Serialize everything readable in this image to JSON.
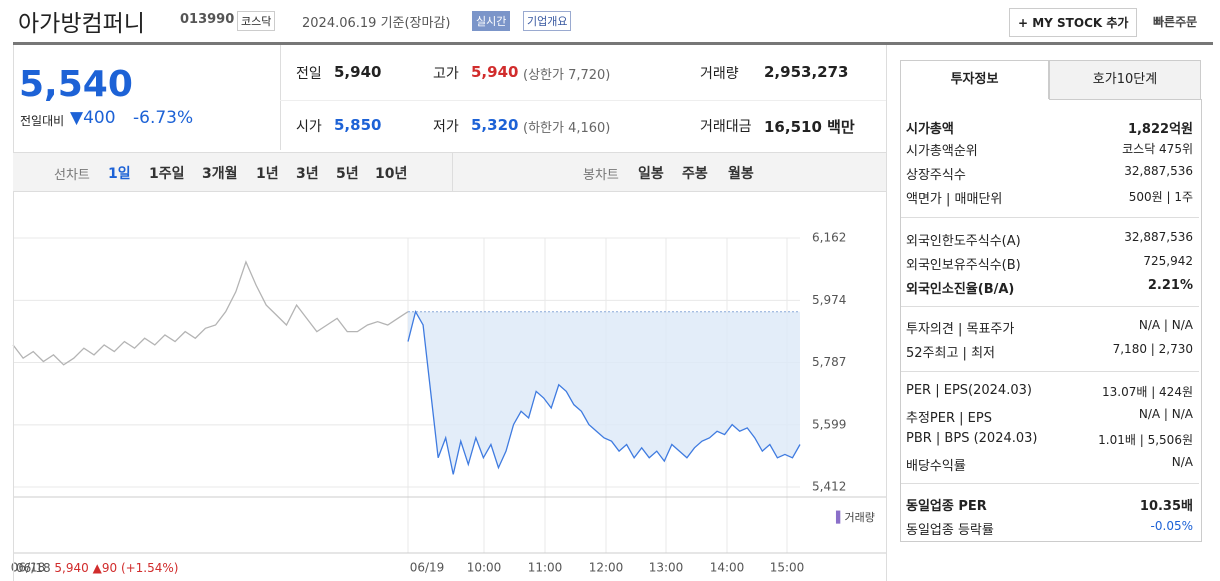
{
  "header": {
    "title": "아가방컴퍼니",
    "code": "013990",
    "market": "코스닥",
    "date": "2024.06.19 기준(장마감)",
    "realtime": "실시간",
    "overview": "기업개요",
    "mystock": "+ MY STOCK 추가",
    "quick_order": "빠른주문"
  },
  "price": {
    "current": "5,540",
    "change_label": "전일대비",
    "change": "▼400",
    "rate": "-6.73%"
  },
  "summary": {
    "rows": [
      [
        [
          "전일",
          "5,940"
        ],
        [
          "고가",
          "5,940",
          "(상한가 7,720)"
        ],
        [
          "거래량",
          "2,953,273"
        ]
      ],
      [
        [
          "시가",
          "5,850"
        ],
        [
          "저가",
          "5,320",
          "(하한가 4,160)"
        ],
        [
          "거래대금",
          "16,510 백만"
        ]
      ]
    ]
  },
  "toolbar": {
    "line_label": "선차트",
    "line_periods": [
      "1일",
      "1주일",
      "3개월",
      "1년",
      "3년",
      "5년",
      "10년"
    ],
    "candle_label": "봉차트",
    "candle_periods": [
      "일봉",
      "주봉",
      "월봉"
    ]
  },
  "chart_data": {
    "type": "line",
    "volume_label": "거래량",
    "x_labels": [
      "06/18",
      "06/19",
      "10:00",
      "11:00",
      "12:00",
      "13:00",
      "14:00",
      "15:00"
    ],
    "ylim": [
      5412,
      6162
    ],
    "yticks": [
      {
        "value": 5412,
        "label": "5,412"
      },
      {
        "value": 5599,
        "label": "5,599"
      },
      {
        "value": 5787,
        "label": "5,787"
      },
      {
        "value": 5974,
        "label": "5,974"
      },
      {
        "value": 6162,
        "label": "6,162"
      }
    ],
    "base": 5940,
    "series": [
      {
        "color": "#b4b4b4",
        "values": [
          5840,
          5800,
          5820,
          5790,
          5810,
          5780,
          5800,
          5830,
          5810,
          5840,
          5820,
          5850,
          5830,
          5860,
          5840,
          5870,
          5850,
          5880,
          5860,
          5890,
          5900,
          5940,
          6000,
          6090,
          6020,
          5960,
          5930,
          5900,
          5960,
          5920,
          5880,
          5900,
          5920,
          5880,
          5880,
          5900,
          5910,
          5900,
          5920,
          5940
        ]
      },
      {
        "color": "#3f7be0",
        "values": [
          5850,
          5940,
          5900,
          5700,
          5500,
          5560,
          5450,
          5550,
          5480,
          5560,
          5500,
          5540,
          5470,
          5520,
          5600,
          5640,
          5620,
          5700,
          5680,
          5650,
          5720,
          5700,
          5660,
          5640,
          5600,
          5580,
          5560,
          5550,
          5520,
          5540,
          5500,
          5530,
          5500,
          5520,
          5490,
          5540,
          5520,
          5500,
          5530,
          5550,
          5560,
          5580,
          5570,
          5600,
          5580,
          5590,
          5560,
          5520,
          5540,
          5500,
          5510,
          5500,
          5540
        ]
      }
    ]
  },
  "footer": {
    "date": "06/18",
    "price": "5,940",
    "change": "▲90",
    "rate": "(+1.54%)"
  },
  "side": {
    "tabs": [
      "투자정보",
      "호가10단계"
    ],
    "groups": [
      [
        [
          "시가총액",
          "1,822억원"
        ],
        [
          "시가총액순위",
          "코스닥 475위"
        ],
        [
          "상장주식수",
          "32,887,536"
        ],
        [
          "액면가 | 매매단위",
          "500원 | 1주"
        ]
      ],
      [
        [
          "외국인한도주식수(A)",
          "32,887,536"
        ],
        [
          "외국인보유주식수(B)",
          "725,942"
        ],
        [
          "외국인소진율(B/A)",
          "2.21%"
        ]
      ],
      [
        [
          "투자의견 | 목표주가",
          "N/A | N/A"
        ],
        [
          "52주최고 | 최저",
          "7,180 | 2,730"
        ]
      ],
      [
        [
          "PER | EPS(2024.03)",
          "13.07배 | 424원"
        ],
        [
          "추정PER | EPS",
          "N/A | N/A"
        ],
        [
          "PBR | BPS (2024.03)",
          "1.01배 | 5,506원"
        ],
        [
          "배당수익률",
          "N/A"
        ]
      ],
      [
        [
          "동일업종 PER",
          "10.35배"
        ],
        [
          "동일업종 등락률",
          "-0.05%"
        ]
      ]
    ]
  }
}
